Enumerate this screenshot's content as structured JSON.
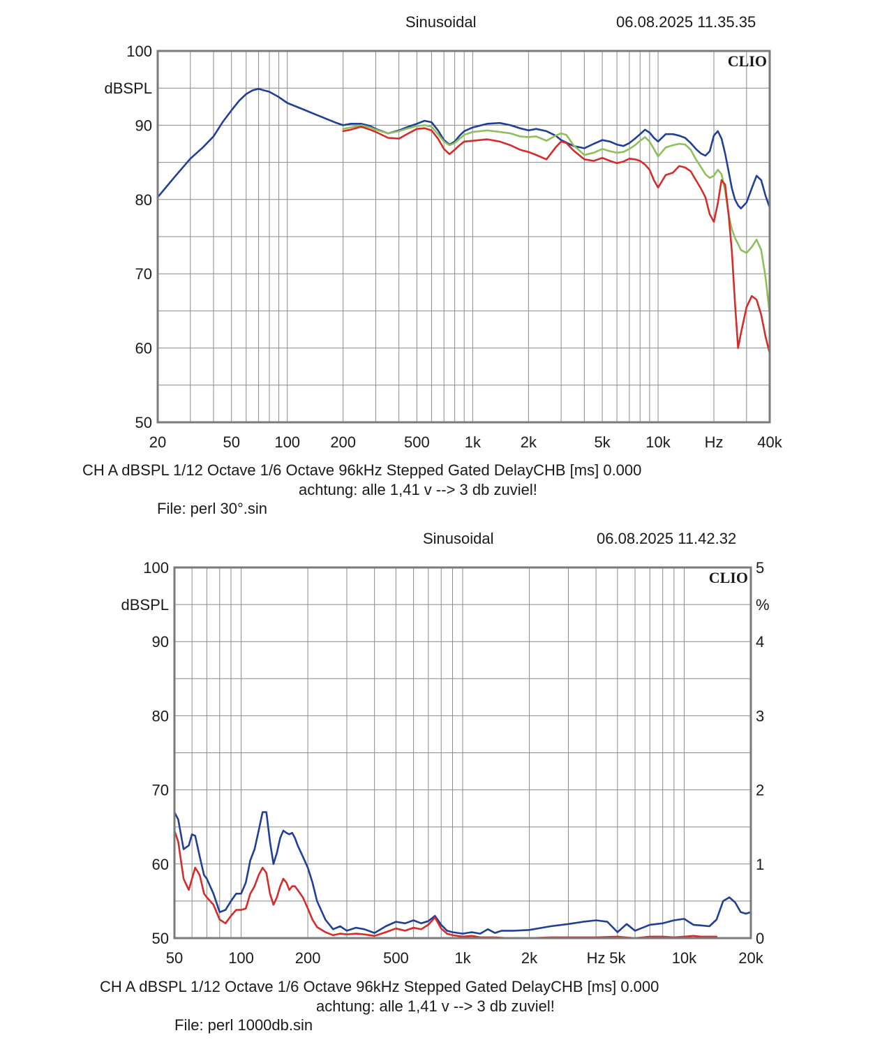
{
  "chart_data": [
    {
      "type": "line",
      "header": {
        "mode": "Sinusoidal",
        "timestamp": "06.08.2025 11.35.35"
      },
      "logo": "CLIO",
      "x_scale": "log",
      "xlim": [
        20,
        40000
      ],
      "ylim": [
        50,
        100
      ],
      "grid": true,
      "ylabel": "dBSPL",
      "x_ticks": [
        20,
        50,
        100,
        200,
        500,
        1000,
        2000,
        5000,
        10000,
        20000,
        40000
      ],
      "x_tick_labels": [
        "20",
        "50",
        "100",
        "200",
        "500",
        "1k",
        "2k",
        "5k",
        "10k",
        "Hz",
        "40k"
      ],
      "y_ticks": [
        50,
        60,
        70,
        80,
        90,
        100
      ],
      "y_tick_labels": [
        "50",
        "60",
        "70",
        "80",
        "90",
        "100"
      ],
      "series": [
        {
          "color": "#1f3f98",
          "x": [
            20,
            25,
            30,
            35,
            40,
            45,
            50,
            55,
            60,
            65,
            70,
            80,
            90,
            100,
            120,
            150,
            180,
            200,
            220,
            250,
            280,
            300,
            350,
            400,
            450,
            500,
            550,
            600,
            650,
            700,
            750,
            800,
            850,
            900,
            1000,
            1200,
            1400,
            1600,
            1800,
            2000,
            2200,
            2500,
            2800,
            3000,
            3500,
            4000,
            4500,
            5000,
            5500,
            6000,
            6500,
            7000,
            7500,
            8000,
            8500,
            9000,
            9500,
            10000,
            11000,
            12000,
            13000,
            14000,
            15000,
            16000,
            17000,
            18000,
            19000,
            20000,
            21000,
            22000,
            23000,
            24000,
            25000,
            26000,
            27000,
            28000,
            30000,
            32000,
            34000,
            36000,
            38000,
            40000
          ],
          "y": [
            80.3,
            83.2,
            85.5,
            87.0,
            88.5,
            90.5,
            92.0,
            93.3,
            94.2,
            94.7,
            94.9,
            94.5,
            93.8,
            93.0,
            92.2,
            91.2,
            90.4,
            90.0,
            90.2,
            90.2,
            89.9,
            89.5,
            88.9,
            89.3,
            89.8,
            90.2,
            90.6,
            90.4,
            89.3,
            88.0,
            87.4,
            87.8,
            88.6,
            89.2,
            89.7,
            90.2,
            90.3,
            90.0,
            89.6,
            89.3,
            89.5,
            89.2,
            88.6,
            88.0,
            87.2,
            86.9,
            87.5,
            88.0,
            87.8,
            87.4,
            87.2,
            87.6,
            88.2,
            88.8,
            89.4,
            89.0,
            88.3,
            87.8,
            88.8,
            88.8,
            88.6,
            88.3,
            87.6,
            86.8,
            86.2,
            85.9,
            86.5,
            88.6,
            89.2,
            88.2,
            86.2,
            83.8,
            81.5,
            80.0,
            79.2,
            78.8,
            79.6,
            81.5,
            83.2,
            82.6,
            80.5,
            78.9
          ]
        },
        {
          "color": "#8dc05a",
          "x": [
            200,
            220,
            250,
            280,
            300,
            350,
            400,
            450,
            500,
            550,
            600,
            650,
            700,
            750,
            800,
            850,
            900,
            1000,
            1200,
            1400,
            1600,
            1800,
            2000,
            2200,
            2500,
            2800,
            3000,
            3200,
            3500,
            4000,
            4500,
            5000,
            5500,
            6000,
            6500,
            7000,
            7500,
            8000,
            8500,
            9000,
            9500,
            10000,
            11000,
            12000,
            13000,
            14000,
            15000,
            16000,
            17000,
            18000,
            19000,
            20000,
            21000,
            22000,
            23000,
            24000,
            25000,
            26000,
            27000,
            28000,
            30000,
            32000,
            34000,
            36000,
            38000,
            40000
          ],
          "y": [
            89.5,
            89.7,
            90.0,
            89.7,
            89.4,
            88.9,
            89.2,
            89.6,
            89.9,
            90.0,
            89.8,
            88.8,
            87.8,
            87.3,
            87.6,
            88.2,
            88.7,
            89.1,
            89.3,
            89.1,
            88.9,
            88.5,
            88.4,
            88.5,
            87.9,
            88.6,
            88.9,
            88.7,
            87.3,
            86.0,
            86.3,
            86.8,
            86.5,
            86.3,
            86.4,
            86.8,
            87.3,
            87.9,
            88.4,
            87.8,
            86.8,
            85.8,
            87.0,
            87.3,
            87.5,
            87.4,
            86.7,
            85.4,
            84.4,
            83.4,
            82.9,
            83.2,
            84.0,
            83.4,
            81.2,
            78.0,
            76.0,
            74.8,
            74.0,
            73.2,
            72.8,
            73.6,
            74.6,
            73.2,
            69.5,
            64.6
          ]
        },
        {
          "color": "#d62b2b",
          "x": [
            200,
            220,
            250,
            280,
            300,
            350,
            400,
            450,
            500,
            550,
            600,
            650,
            700,
            750,
            800,
            850,
            900,
            1000,
            1200,
            1400,
            1600,
            1800,
            2000,
            2200,
            2500,
            2800,
            3000,
            3200,
            3500,
            4000,
            4500,
            5000,
            5500,
            6000,
            6500,
            7000,
            7500,
            8000,
            8500,
            9000,
            9500,
            10000,
            11000,
            12000,
            13000,
            14000,
            15000,
            16000,
            17000,
            18000,
            19000,
            20000,
            21000,
            22000,
            23000,
            24000,
            25000,
            26000,
            27000,
            28000,
            30000,
            32000,
            34000,
            36000,
            38000,
            40000
          ],
          "y": [
            89.2,
            89.4,
            89.8,
            89.4,
            89.1,
            88.3,
            88.2,
            88.9,
            89.5,
            89.6,
            89.3,
            88.2,
            86.8,
            86.1,
            86.7,
            87.3,
            87.8,
            87.9,
            88.1,
            87.8,
            87.3,
            86.7,
            86.4,
            86.0,
            85.4,
            87.0,
            87.8,
            87.6,
            86.6,
            85.4,
            85.2,
            85.6,
            85.2,
            84.9,
            85.1,
            85.5,
            85.4,
            85.2,
            84.7,
            84.0,
            82.6,
            81.6,
            83.3,
            83.6,
            84.5,
            84.3,
            83.8,
            82.6,
            81.5,
            80.3,
            78.0,
            77.0,
            79.5,
            82.6,
            82.0,
            78.0,
            73.0,
            66.0,
            60.0,
            62.0,
            65.5,
            67.0,
            66.5,
            64.5,
            61.5,
            59.3
          ]
        }
      ],
      "footer": {
        "line1": "CH A   dBSPL    1/12 Octave    1/6 Octave   96kHz   Stepped    Gated    DelayCHB [ms] 0.000",
        "note": "achtung: alle 1,41 v --> 3 db zuviel!",
        "file": "File: perl 30°.sin"
      }
    },
    {
      "type": "line",
      "header": {
        "mode": "Sinusoidal",
        "timestamp": "06.08.2025 11.42.32"
      },
      "logo": "CLIO",
      "x_scale": "log",
      "xlim": [
        50,
        20000
      ],
      "ylim": [
        50,
        100
      ],
      "y2lim": [
        0,
        5
      ],
      "grid": true,
      "ylabel": "dBSPL",
      "y2label": "%",
      "x_ticks": [
        50,
        100,
        200,
        500,
        1000,
        2000,
        4000,
        5000,
        10000,
        20000
      ],
      "x_tick_labels": [
        "50",
        "100",
        "200",
        "500",
        "1k",
        "2k",
        "Hz",
        "5k",
        "10k",
        "20k"
      ],
      "y_ticks": [
        50,
        60,
        70,
        80,
        90,
        100
      ],
      "y_tick_labels": [
        "50",
        "60",
        "70",
        "80",
        "90",
        "100"
      ],
      "y2_ticks": [
        0,
        1,
        2,
        3,
        4,
        5
      ],
      "y2_tick_labels": [
        "0",
        "1",
        "2",
        "3",
        "4",
        "5"
      ],
      "series": [
        {
          "color": "#1f3f98",
          "x": [
            50,
            52,
            55,
            58,
            60,
            62,
            65,
            68,
            70,
            75,
            80,
            85,
            90,
            95,
            100,
            105,
            110,
            115,
            120,
            125,
            130,
            135,
            140,
            145,
            150,
            155,
            160,
            165,
            170,
            175,
            180,
            190,
            200,
            210,
            220,
            240,
            260,
            280,
            300,
            330,
            360,
            400,
            450,
            500,
            550,
            600,
            650,
            700,
            750,
            800,
            850,
            900,
            1000,
            1100,
            1200,
            1300,
            1400,
            1500,
            1700,
            2000,
            2500,
            3000,
            3500,
            4000,
            4500,
            5000,
            5500,
            6000,
            7000,
            8000,
            9000,
            10000,
            11000,
            12000,
            13000,
            14000,
            15000,
            16000,
            17000,
            18000,
            19000,
            20000
          ],
          "y": [
            67.0,
            66.0,
            62.0,
            62.5,
            64.0,
            63.8,
            61.0,
            58.5,
            58.0,
            56.0,
            53.5,
            53.8,
            55.0,
            56.0,
            56.0,
            57.5,
            60.5,
            62.0,
            64.5,
            67.0,
            67.0,
            63.0,
            60.0,
            61.5,
            63.5,
            64.5,
            64.2,
            64.0,
            64.2,
            63.5,
            62.5,
            61.0,
            59.5,
            57.5,
            55.0,
            52.5,
            51.2,
            51.6,
            51.0,
            51.4,
            51.2,
            50.7,
            51.6,
            52.2,
            52.0,
            52.4,
            52.0,
            52.3,
            53.0,
            51.8,
            51.0,
            50.8,
            50.6,
            50.8,
            50.6,
            51.2,
            50.7,
            51.0,
            51.0,
            51.1,
            51.6,
            51.9,
            52.2,
            52.4,
            52.2,
            50.8,
            51.9,
            51.0,
            51.8,
            52.0,
            52.4,
            52.6,
            51.8,
            51.7,
            51.6,
            52.5,
            55.0,
            55.5,
            54.8,
            53.5,
            53.3,
            53.5
          ]
        },
        {
          "color": "#d62b2b",
          "x": [
            50,
            52,
            55,
            58,
            60,
            62,
            65,
            68,
            70,
            75,
            80,
            85,
            90,
            95,
            100,
            105,
            110,
            115,
            120,
            125,
            130,
            135,
            140,
            145,
            150,
            155,
            160,
            165,
            170,
            175,
            180,
            190,
            200,
            210,
            220,
            240,
            260,
            280,
            300,
            330,
            360,
            400,
            450,
            500,
            550,
            600,
            650,
            700,
            750,
            800,
            850,
            900,
            1000,
            1100,
            1200,
            1400,
            1600,
            2000,
            2500,
            3000,
            3500,
            4000,
            5000,
            6000,
            7000,
            8000,
            9000,
            10000,
            11000,
            12000,
            13000,
            14000
          ],
          "y": [
            64.5,
            63.0,
            58.0,
            56.5,
            58.0,
            59.5,
            58.5,
            56.0,
            55.5,
            54.5,
            52.5,
            52.0,
            53.0,
            53.8,
            53.8,
            54.0,
            56.0,
            57.0,
            58.5,
            59.5,
            58.8,
            56.0,
            54.5,
            55.5,
            57.0,
            58.0,
            57.5,
            56.5,
            57.0,
            57.0,
            56.5,
            55.5,
            54.0,
            52.5,
            51.5,
            50.8,
            50.4,
            50.6,
            50.5,
            50.6,
            50.5,
            50.3,
            50.8,
            51.3,
            51.0,
            51.4,
            51.2,
            51.8,
            52.8,
            51.3,
            50.6,
            50.4,
            50.2,
            50.3,
            50.1,
            50.1,
            50.0,
            50.0,
            50.1,
            50.1,
            50.1,
            50.1,
            50.2,
            50.0,
            50.2,
            50.2,
            50.1,
            50.2,
            50.3,
            50.2,
            50.2,
            50.2
          ]
        }
      ],
      "footer": {
        "line1": "CH A   dBSPL    1/12 Octave    1/6 Octave   96kHz   Stepped    Gated    DelayCHB [ms] 0.000",
        "note": "achtung: alle 1,41 v --> 3 db zuviel!",
        "file": "File: perl 1000db.sin"
      }
    }
  ]
}
